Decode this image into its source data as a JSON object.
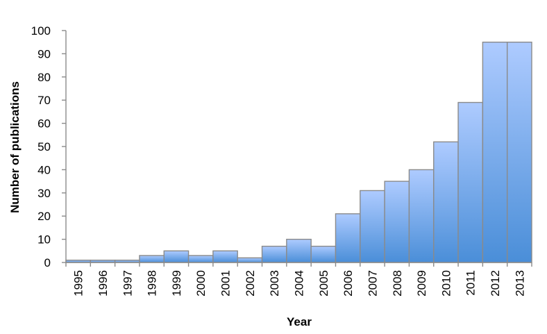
{
  "chart_data": {
    "type": "bar",
    "title": "",
    "xlabel": "Year",
    "ylabel": "Number of publications",
    "categories": [
      "1995",
      "1996",
      "1997",
      "1998",
      "1999",
      "2000",
      "2001",
      "2002",
      "2003",
      "2004",
      "2005",
      "2006",
      "2007",
      "2008",
      "2009",
      "2010",
      "2011",
      "2012",
      "2013"
    ],
    "values": [
      1,
      1,
      1,
      3,
      5,
      3,
      5,
      2,
      7,
      10,
      7,
      21,
      31,
      35,
      40,
      52,
      69,
      95,
      95
    ],
    "ylim": [
      0,
      100
    ],
    "yticks": [
      0,
      10,
      20,
      30,
      40,
      50,
      60,
      70,
      80,
      90,
      100
    ],
    "grid": false,
    "legend": "none",
    "colors": {
      "bar_top": "#aecbff",
      "bar_bottom": "#4a8ed8",
      "bar_edge": "#8a8a8a",
      "axis": "#8a8a8a"
    }
  }
}
